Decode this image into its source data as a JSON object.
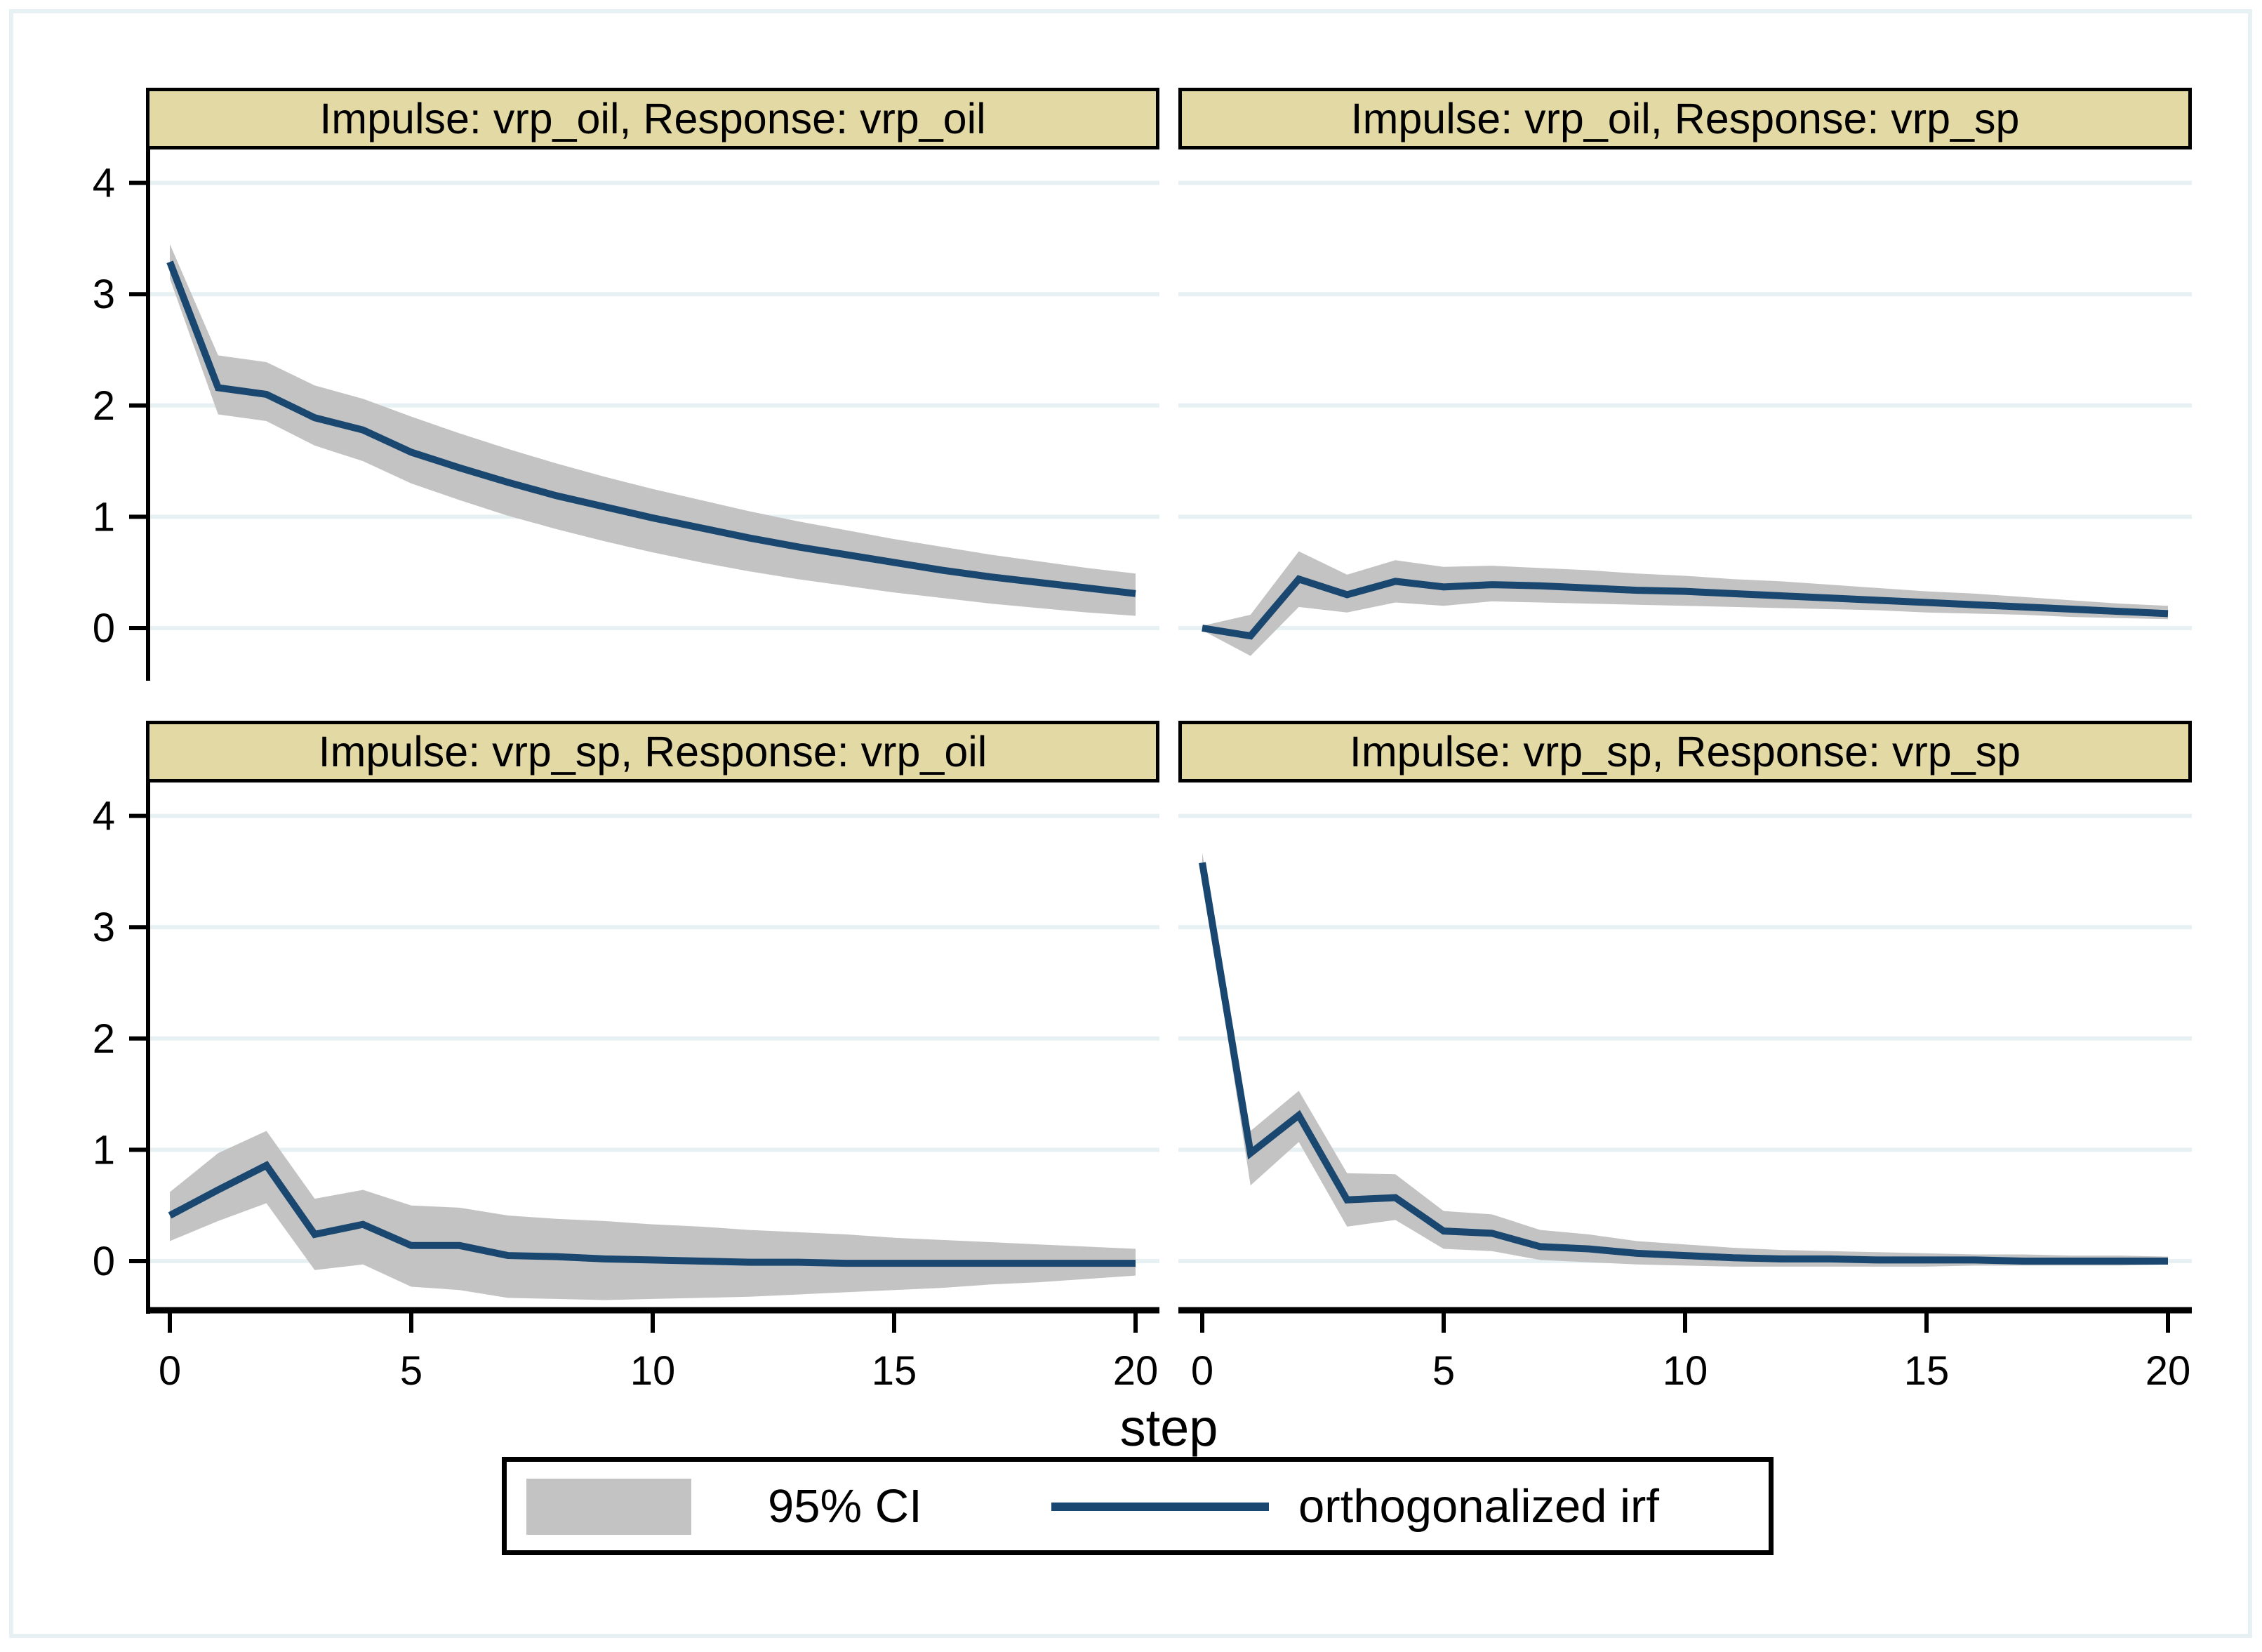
{
  "figure": {
    "kind": "stata-irf-graph",
    "xlabel": "step",
    "background": "#ffffff",
    "frame_color": "#e7f0f2"
  },
  "chart_data": {
    "type": "line",
    "title": "",
    "xlabel": "step",
    "ylabel": "",
    "grid": true,
    "legend_position": "bottom-center",
    "x_ticks": [
      0,
      5,
      10,
      15,
      20
    ],
    "y_ticks": [
      0,
      1,
      2,
      3,
      4
    ],
    "x_range": [
      -0.5,
      20.5
    ],
    "y_range": [
      -0.47,
      4.3
    ],
    "steps": [
      0,
      1,
      2,
      3,
      4,
      5,
      6,
      7,
      8,
      9,
      10,
      11,
      12,
      13,
      14,
      15,
      16,
      17,
      18,
      19,
      20
    ],
    "colors": {
      "irf_line": "#1a476f",
      "ci_fill": "#c3c3c3",
      "grid": "#e7f0f2",
      "title_bg": "#e3d9a5",
      "axis": "#000000"
    },
    "legend": [
      {
        "label": "95% CI",
        "type": "area",
        "color": "#c3c3c3"
      },
      {
        "label": "orthogonalized irf",
        "type": "line",
        "color": "#1a476f"
      }
    ],
    "panels": [
      {
        "title": "Impulse: vrp_oil, Response: vrp_oil",
        "impulse": "vrp_oil",
        "response": "vrp_oil",
        "y_axis": true,
        "x_axis": false,
        "irf": [
          3.29,
          2.16,
          2.1,
          1.89,
          1.78,
          1.58,
          1.44,
          1.31,
          1.19,
          1.09,
          0.99,
          0.9,
          0.81,
          0.73,
          0.66,
          0.59,
          0.52,
          0.46,
          0.41,
          0.36,
          0.31
        ],
        "ci_lower": [
          3.14,
          1.92,
          1.86,
          1.64,
          1.5,
          1.3,
          1.15,
          1.01,
          0.89,
          0.78,
          0.68,
          0.59,
          0.51,
          0.44,
          0.38,
          0.32,
          0.27,
          0.22,
          0.18,
          0.14,
          0.11
        ],
        "ci_upper": [
          3.45,
          2.45,
          2.39,
          2.18,
          2.06,
          1.9,
          1.75,
          1.61,
          1.48,
          1.36,
          1.25,
          1.15,
          1.05,
          0.96,
          0.88,
          0.8,
          0.73,
          0.66,
          0.6,
          0.54,
          0.49
        ]
      },
      {
        "title": "Impulse: vrp_oil, Response: vrp_sp",
        "impulse": "vrp_oil",
        "response": "vrp_sp",
        "y_axis": false,
        "x_axis": false,
        "irf": [
          0.0,
          -0.07,
          0.44,
          0.3,
          0.42,
          0.37,
          0.39,
          0.38,
          0.36,
          0.34,
          0.33,
          0.31,
          0.29,
          0.27,
          0.25,
          0.23,
          0.21,
          0.19,
          0.17,
          0.15,
          0.13
        ],
        "ci_lower": [
          -0.02,
          -0.25,
          0.19,
          0.14,
          0.23,
          0.2,
          0.24,
          0.23,
          0.22,
          0.21,
          0.2,
          0.19,
          0.18,
          0.17,
          0.16,
          0.14,
          0.13,
          0.12,
          0.1,
          0.09,
          0.08
        ],
        "ci_upper": [
          0.02,
          0.12,
          0.69,
          0.48,
          0.61,
          0.55,
          0.56,
          0.54,
          0.52,
          0.49,
          0.47,
          0.44,
          0.42,
          0.39,
          0.36,
          0.33,
          0.31,
          0.28,
          0.25,
          0.22,
          0.2
        ]
      },
      {
        "title": "Impulse: vrp_sp, Response: vrp_oil",
        "impulse": "vrp_sp",
        "response": "vrp_oil",
        "y_axis": true,
        "x_axis": true,
        "irf": [
          0.41,
          0.64,
          0.86,
          0.24,
          0.33,
          0.14,
          0.14,
          0.05,
          0.04,
          0.02,
          0.01,
          0.0,
          -0.01,
          -0.01,
          -0.02,
          -0.02,
          -0.02,
          -0.02,
          -0.02,
          -0.02,
          -0.02
        ],
        "ci_lower": [
          0.18,
          0.36,
          0.52,
          -0.08,
          -0.03,
          -0.23,
          -0.26,
          -0.33,
          -0.34,
          -0.35,
          -0.34,
          -0.33,
          -0.32,
          -0.3,
          -0.28,
          -0.26,
          -0.24,
          -0.21,
          -0.19,
          -0.16,
          -0.13
        ],
        "ci_upper": [
          0.62,
          0.97,
          1.17,
          0.56,
          0.64,
          0.5,
          0.48,
          0.41,
          0.38,
          0.36,
          0.33,
          0.31,
          0.28,
          0.26,
          0.24,
          0.21,
          0.19,
          0.17,
          0.15,
          0.13,
          0.11
        ]
      },
      {
        "title": "Impulse: vrp_sp, Response: vrp_sp",
        "impulse": "vrp_sp",
        "response": "vrp_sp",
        "y_axis": false,
        "x_axis": true,
        "irf": [
          3.58,
          0.97,
          1.31,
          0.55,
          0.57,
          0.27,
          0.25,
          0.13,
          0.11,
          0.07,
          0.05,
          0.03,
          0.02,
          0.02,
          0.01,
          0.01,
          0.01,
          0.0,
          0.0,
          0.0,
          0.0
        ],
        "ci_lower": [
          3.5,
          0.68,
          1.07,
          0.31,
          0.37,
          0.11,
          0.09,
          0.01,
          -0.01,
          -0.03,
          -0.04,
          -0.05,
          -0.05,
          -0.05,
          -0.05,
          -0.05,
          -0.04,
          -0.04,
          -0.04,
          -0.04,
          -0.03
        ],
        "ci_upper": [
          3.67,
          1.17,
          1.53,
          0.79,
          0.78,
          0.45,
          0.42,
          0.28,
          0.24,
          0.18,
          0.15,
          0.12,
          0.1,
          0.09,
          0.08,
          0.07,
          0.06,
          0.06,
          0.05,
          0.05,
          0.04
        ]
      }
    ]
  }
}
